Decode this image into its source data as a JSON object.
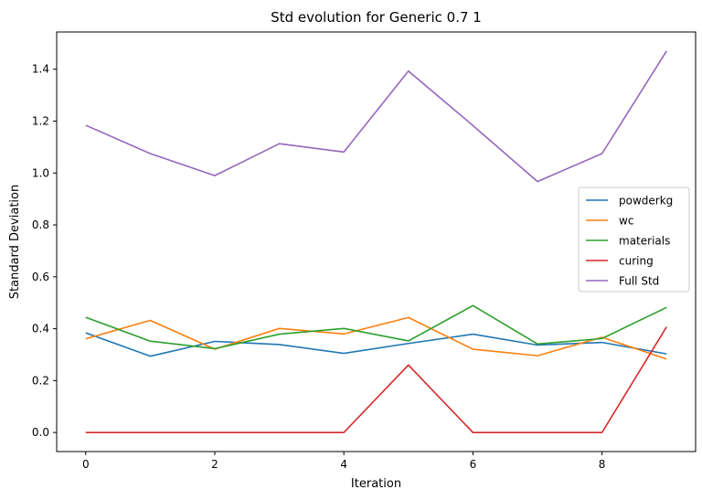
{
  "chart_data": {
    "type": "line",
    "title": "Std evolution for Generic 0.7 1",
    "xlabel": "Iteration",
    "ylabel": "Standard Deviation",
    "x": [
      0,
      1,
      2,
      3,
      4,
      5,
      6,
      7,
      8,
      9
    ],
    "xlim": [
      -0.45,
      9.45
    ],
    "ylim": [
      -0.0735,
      1.5435
    ],
    "xticks": [
      0,
      2,
      4,
      6,
      8
    ],
    "xtick_labels": [
      "0",
      "2",
      "4",
      "6",
      "8"
    ],
    "yticks": [
      0.0,
      0.2,
      0.4,
      0.6,
      0.8,
      1.0,
      1.2,
      1.4
    ],
    "ytick_labels": [
      "0.0",
      "0.2",
      "0.4",
      "0.6",
      "0.8",
      "1.0",
      "1.2",
      "1.4"
    ],
    "grid": false,
    "legend_position": "center-right",
    "series": [
      {
        "name": "powderkg",
        "color": "#1f77b4",
        "values": [
          0.384,
          0.294,
          0.351,
          0.339,
          0.305,
          0.343,
          0.379,
          0.337,
          0.347,
          0.303
        ]
      },
      {
        "name": "wc",
        "color": "#ff7f0e",
        "values": [
          0.361,
          0.432,
          0.321,
          0.401,
          0.38,
          0.443,
          0.321,
          0.296,
          0.367,
          0.283
        ]
      },
      {
        "name": "materials",
        "color": "#2ca02c",
        "values": [
          0.444,
          0.352,
          0.323,
          0.379,
          0.401,
          0.353,
          0.489,
          0.341,
          0.362,
          0.482
        ]
      },
      {
        "name": "curing",
        "color": "#d62728",
        "values": [
          0.0,
          0.0,
          0.0,
          0.0,
          0.0,
          0.26,
          0.0,
          0.0,
          0.0,
          0.407
        ]
      },
      {
        "name": "Full Std",
        "color": "#9467bd",
        "values": [
          1.184,
          1.075,
          0.99,
          1.113,
          1.081,
          1.393,
          1.183,
          0.967,
          1.075,
          1.47
        ]
      }
    ]
  }
}
